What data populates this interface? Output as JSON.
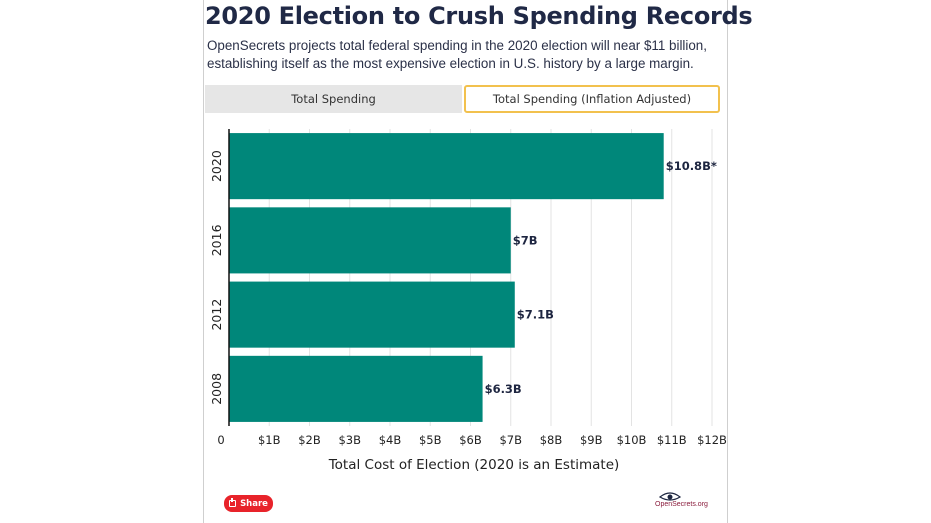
{
  "header": {
    "title": "2020 Election to Crush Spending Records",
    "subtitle": "OpenSecrets projects total federal spending in the 2020 election will near $11 billion, establishing itself as the most expensive election in U.S. history by a large margin."
  },
  "tabs": [
    {
      "label": "Total Spending",
      "active": false
    },
    {
      "label": "Total Spending (Inflation Adjusted)",
      "active": true
    }
  ],
  "share_label": "Share",
  "logo_text": "OpenSecrets.org",
  "chart_data": {
    "type": "bar",
    "orientation": "horizontal",
    "categories": [
      "2020",
      "2016",
      "2012",
      "2008"
    ],
    "values": [
      10.8,
      7.0,
      7.1,
      6.3
    ],
    "data_labels": [
      "$10.8B*",
      "$7B",
      "$7.1B",
      "$6.3B"
    ],
    "xlabel": "Total Cost of Election (2020 is an Estimate)",
    "xlim": [
      0,
      12
    ],
    "ticks": [
      0,
      1,
      2,
      3,
      4,
      5,
      6,
      7,
      8,
      9,
      10,
      11,
      12
    ],
    "tick_labels": [
      "0",
      "$1B",
      "$2B",
      "$3B",
      "$4B",
      "$5B",
      "$6B",
      "$7B",
      "$8B",
      "$9B",
      "$10B",
      "$11B",
      "$12B"
    ],
    "grid": "vertical",
    "bar_color": "#00877a"
  }
}
